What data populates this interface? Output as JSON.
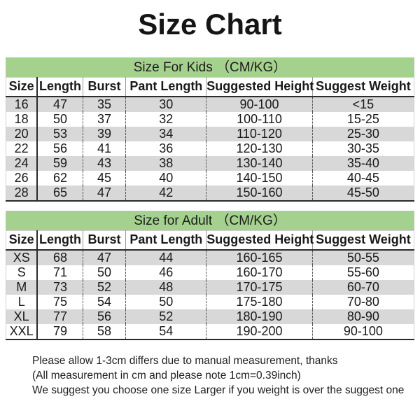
{
  "title": "Size Chart",
  "tables": [
    {
      "id": "kids",
      "header": "Size For Kids （CM/KG）",
      "columns": [
        "Size",
        "Length",
        "Burst",
        "Pant Length",
        "Suggested Height",
        "Suggest Weight"
      ],
      "rows": [
        [
          "16",
          "47",
          "35",
          "30",
          "90-100",
          "<15"
        ],
        [
          "18",
          "50",
          "37",
          "32",
          "100-110",
          "15-25"
        ],
        [
          "20",
          "53",
          "39",
          "34",
          "110-120",
          "25-30"
        ],
        [
          "22",
          "56",
          "41",
          "36",
          "120-130",
          "30-35"
        ],
        [
          "24",
          "59",
          "43",
          "38",
          "130-140",
          "35-40"
        ],
        [
          "26",
          "62",
          "45",
          "40",
          "140-150",
          "40-45"
        ],
        [
          "28",
          "65",
          "47",
          "42",
          "150-160",
          "45-50"
        ]
      ]
    },
    {
      "id": "adult",
      "header": "Size for Adult （CM/KG）",
      "columns": [
        "Size",
        "Length",
        "Burst",
        "Pant Length",
        "Suggested Height",
        "Suggest Weight"
      ],
      "rows": [
        [
          "XS",
          "68",
          "47",
          "44",
          "160-165",
          "50-55"
        ],
        [
          "S",
          "71",
          "50",
          "46",
          "160-170",
          "55-60"
        ],
        [
          "M",
          "73",
          "52",
          "48",
          "170-175",
          "60-70"
        ],
        [
          "L",
          "75",
          "54",
          "50",
          "175-180",
          "70-80"
        ],
        [
          "XL",
          "77",
          "56",
          "52",
          "180-190",
          "80-90"
        ],
        [
          "XXL",
          "79",
          "58",
          "54",
          "190-200",
          "90-100"
        ]
      ]
    }
  ],
  "footer": {
    "lines": [
      "Please allow 1-3cm differs due to manual measurement, thanks",
      "(All measurement in cm and please note 1cm=0.39inch)",
      "We suggest you choose one size Larger if you weight is over the suggest one"
    ]
  },
  "colors": {
    "section_band_green": "#a5d18e",
    "row_stripe_gray": "#d8d8d8",
    "text": "#1a1a1a"
  }
}
